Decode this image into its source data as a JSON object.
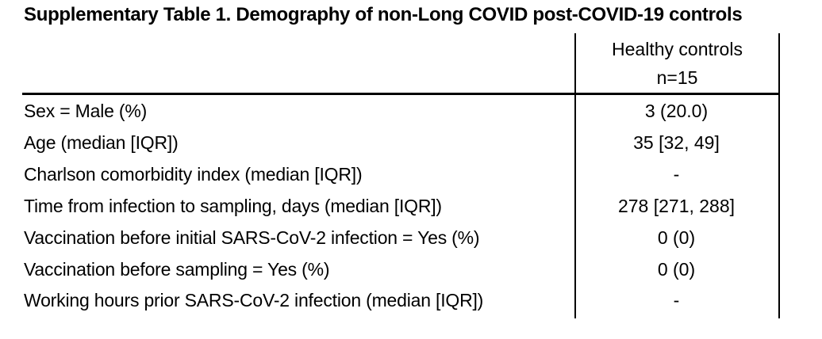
{
  "title": "Supplementary Table 1. Demography of non-Long COVID post-COVID-19 controls",
  "table": {
    "column_header": {
      "line1": "Healthy controls",
      "line2": "n=15"
    },
    "rows": [
      {
        "label": "Sex = Male (%)",
        "value": "3 (20.0)"
      },
      {
        "label": "Age (median [IQR])",
        "value": "35 [32, 49]"
      },
      {
        "label": "Charlson comorbidity index (median [IQR])",
        "value": "-"
      },
      {
        "label": "Time from infection to sampling, days (median [IQR])",
        "value": "278 [271, 288]"
      },
      {
        "label": "Vaccination before initial SARS-CoV-2 infection = Yes (%)",
        "value": "0 (0)"
      },
      {
        "label": "Vaccination before sampling = Yes (%)",
        "value": "0 (0)"
      },
      {
        "label": "Working hours prior SARS-CoV-2 infection (median [IQR])",
        "value": "-"
      }
    ],
    "colors": {
      "text": "#000000",
      "background": "#ffffff",
      "rule": "#000000"
    }
  }
}
